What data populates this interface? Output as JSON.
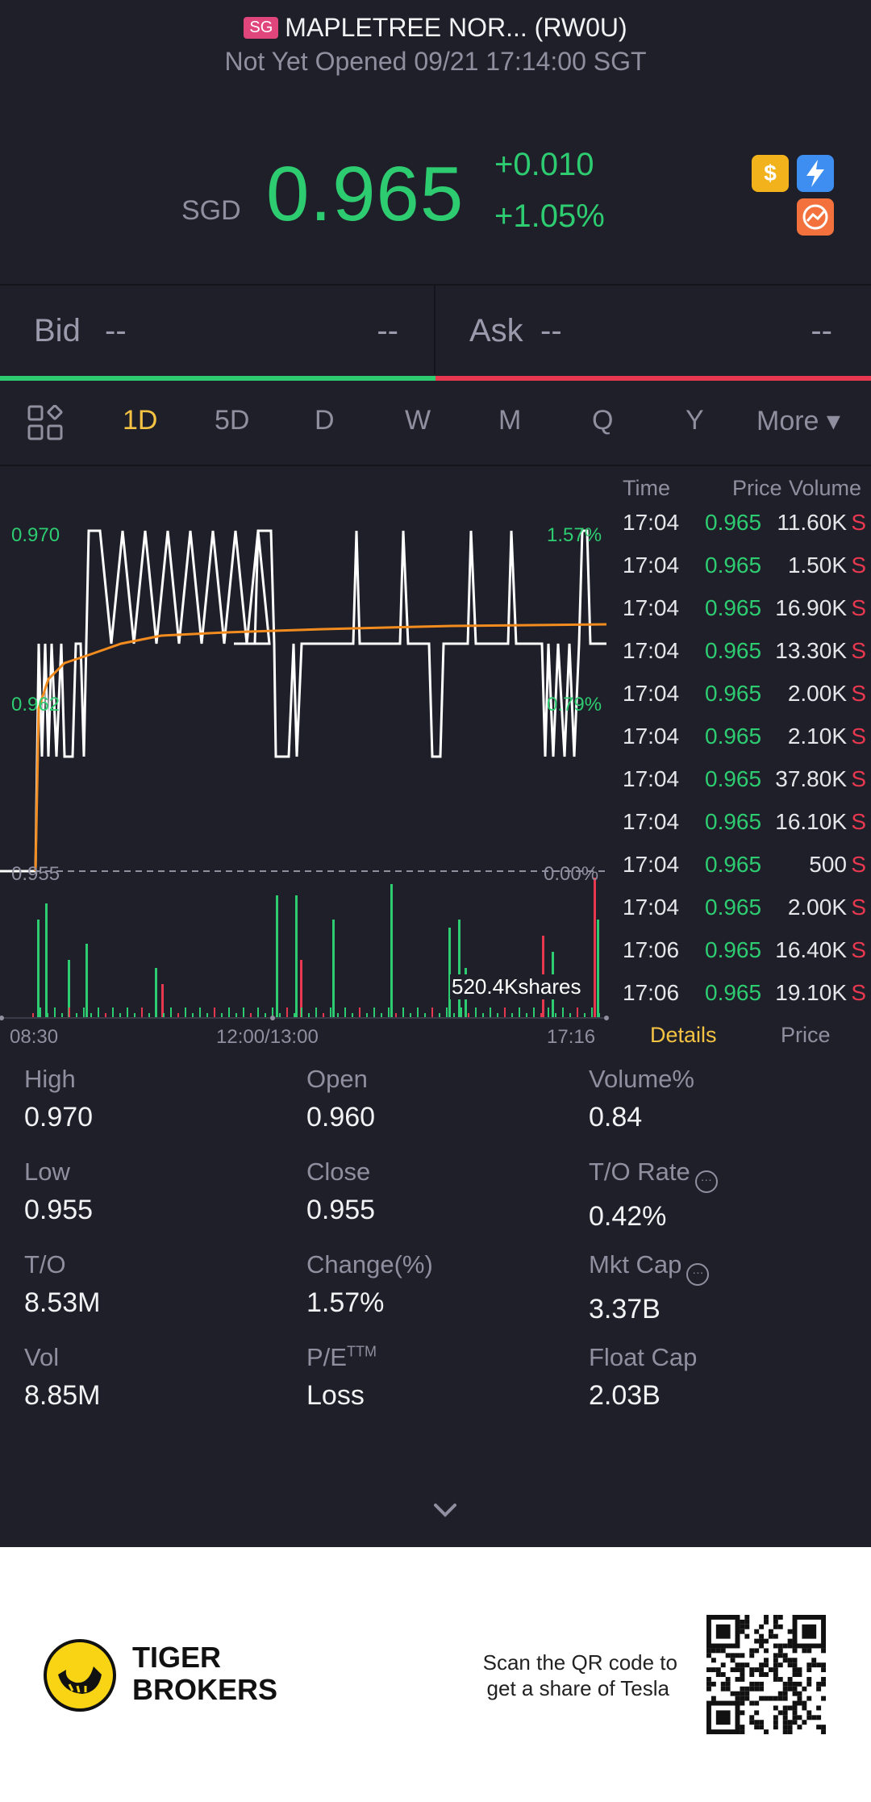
{
  "header": {
    "market_badge": "SG",
    "title": "MAPLETREE NOR... (RW0U)",
    "status": "Not Yet Opened 09/21 17:14:00 SGT",
    "currency": "SGD",
    "price": "0.965",
    "change_abs": "+0.010",
    "change_pct": "+1.05%",
    "icons": [
      "dollar-icon",
      "flash-icon",
      "trend-icon"
    ]
  },
  "bidask": {
    "bid_label": "Bid",
    "bid_price": "--",
    "bid_size": "--",
    "ask_label": "Ask",
    "ask_price": "--",
    "ask_size": "--"
  },
  "tabs": [
    {
      "label": "1D",
      "active": true
    },
    {
      "label": "5D"
    },
    {
      "label": "D"
    },
    {
      "label": "W"
    },
    {
      "label": "M"
    },
    {
      "label": "Q"
    },
    {
      "label": "Y"
    }
  ],
  "more_tab": "More ▾",
  "chart": {
    "y_labels": {
      "top": "0.970",
      "mid": "0.962",
      "base": "0.955"
    },
    "pct_labels": {
      "top": "1.57%",
      "mid": "0.79%",
      "base": "0.00%"
    },
    "x_labels": [
      "08:30",
      "12:00/13:00",
      "17:16"
    ],
    "volume_label": "520.4Kshares",
    "colors": {
      "price_line": "#ffffff",
      "avg_line": "#f28c1e",
      "up": "#2ecc71",
      "down": "#e8384f"
    }
  },
  "tape": {
    "headers": {
      "time": "Time",
      "price": "Price",
      "volume": "Volume"
    },
    "rows": [
      {
        "time": "17:04",
        "price": "0.965",
        "volume": "11.60K",
        "side": "S"
      },
      {
        "time": "17:04",
        "price": "0.965",
        "volume": "1.50K",
        "side": "S"
      },
      {
        "time": "17:04",
        "price": "0.965",
        "volume": "16.90K",
        "side": "S"
      },
      {
        "time": "17:04",
        "price": "0.965",
        "volume": "13.30K",
        "side": "S"
      },
      {
        "time": "17:04",
        "price": "0.965",
        "volume": "2.00K",
        "side": "S"
      },
      {
        "time": "17:04",
        "price": "0.965",
        "volume": "2.10K",
        "side": "S"
      },
      {
        "time": "17:04",
        "price": "0.965",
        "volume": "37.80K",
        "side": "S"
      },
      {
        "time": "17:04",
        "price": "0.965",
        "volume": "16.10K",
        "side": "S"
      },
      {
        "time": "17:04",
        "price": "0.965",
        "volume": "500",
        "side": "S"
      },
      {
        "time": "17:04",
        "price": "0.965",
        "volume": "2.00K",
        "side": "S"
      },
      {
        "time": "17:06",
        "price": "0.965",
        "volume": "16.40K",
        "side": "S"
      },
      {
        "time": "17:06",
        "price": "0.965",
        "volume": "19.10K",
        "side": "S"
      }
    ],
    "tab_details": "Details",
    "tab_price": "Price"
  },
  "stats": [
    {
      "label": "High",
      "value": "0.970"
    },
    {
      "label": "Open",
      "value": "0.960"
    },
    {
      "label": "Volume%",
      "value": "0.84"
    },
    {
      "label": "Low",
      "value": "0.955"
    },
    {
      "label": "Close",
      "value": "0.955"
    },
    {
      "label": "T/O Rate",
      "value": "0.42%",
      "info": true
    },
    {
      "label": "T/O",
      "value": "8.53M"
    },
    {
      "label": "Change(%)",
      "value": "1.57%"
    },
    {
      "label": "Mkt Cap",
      "value": "3.37B",
      "info": true
    },
    {
      "label": "Vol",
      "value": "8.85M"
    },
    {
      "label": "P/E",
      "sup": "TTM",
      "value": "Loss"
    },
    {
      "label": "Float Cap",
      "value": "2.03B"
    }
  ],
  "footer": {
    "brand_line1": "TIGER",
    "brand_line2": "BROKERS",
    "promo_line1": "Scan the QR code to",
    "promo_line2": "get a share of Tesla"
  }
}
